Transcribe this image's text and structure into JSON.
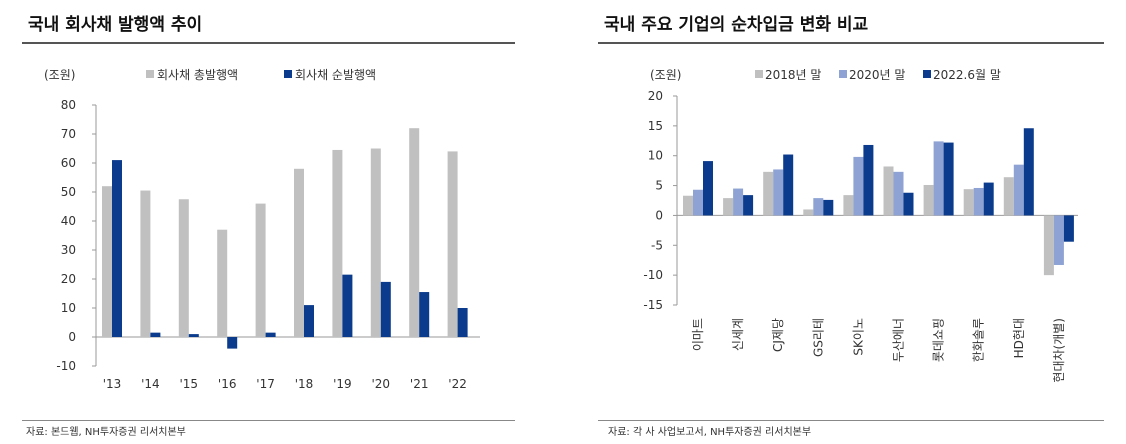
{
  "colors": {
    "gray": "#c0c0c0",
    "lightblue": "#8ea3d3",
    "navy": "#0b3b8c"
  },
  "left": {
    "title": "국내 회사채 발행액 추이",
    "source": "자료: 본드웹, NH투자증권 리서치본부"
  },
  "right": {
    "title": "국내 주요 기업의 순차입금 변화 비교",
    "source": "자료: 각 사 사업보고서, NH투자증권 리서치본부"
  },
  "chart_data": [
    {
      "type": "bar",
      "title": "국내 회사채 발행액 추이",
      "unit_label": "(조원)",
      "categories": [
        "'13",
        "'14",
        "'15",
        "'16",
        "'17",
        "'18",
        "'19",
        "'20",
        "'21",
        "'22"
      ],
      "series": [
        {
          "name": "회사채 총발행액",
          "color": "#c0c0c0",
          "values": [
            52,
            50.5,
            47.5,
            37,
            46,
            58,
            64.5,
            65,
            72,
            64
          ]
        },
        {
          "name": "회사채 순발행액",
          "color": "#0b3b8c",
          "values": [
            61,
            1.5,
            1,
            -4,
            1.5,
            11,
            21.5,
            19,
            15.5,
            10
          ]
        }
      ],
      "ylim": [
        -10,
        80
      ],
      "yticks": [
        -10,
        0,
        10,
        20,
        30,
        40,
        50,
        60,
        70,
        80
      ],
      "grid": false,
      "legend": "top"
    },
    {
      "type": "bar",
      "title": "국내 주요 기업의 순차입금 변화 비교",
      "unit_label": "(조원)",
      "categories": [
        "이마트",
        "신세계",
        "CJ제당",
        "GS리테",
        "SK이노",
        "두산에너",
        "롯데쇼핑",
        "한화솔루",
        "HD현대",
        "현대차(개별)"
      ],
      "series": [
        {
          "name": "2018년 말",
          "color": "#c0c0c0",
          "values": [
            3.3,
            2.9,
            7.3,
            1.0,
            3.4,
            8.2,
            5.1,
            4.4,
            6.4,
            -10.0
          ]
        },
        {
          "name": "2020년 말",
          "color": "#8ea3d3",
          "values": [
            4.3,
            4.5,
            7.7,
            2.9,
            9.8,
            7.3,
            12.4,
            4.6,
            8.5,
            -8.3
          ]
        },
        {
          "name": "2022.6월 말",
          "color": "#0b3b8c",
          "values": [
            9.1,
            3.4,
            10.2,
            2.6,
            11.8,
            3.8,
            12.2,
            5.5,
            14.6,
            -4.4
          ]
        }
      ],
      "ylim": [
        -15,
        20
      ],
      "yticks": [
        -15,
        -10,
        -5,
        0,
        5,
        10,
        15,
        20
      ],
      "grid": false,
      "legend": "top"
    }
  ]
}
